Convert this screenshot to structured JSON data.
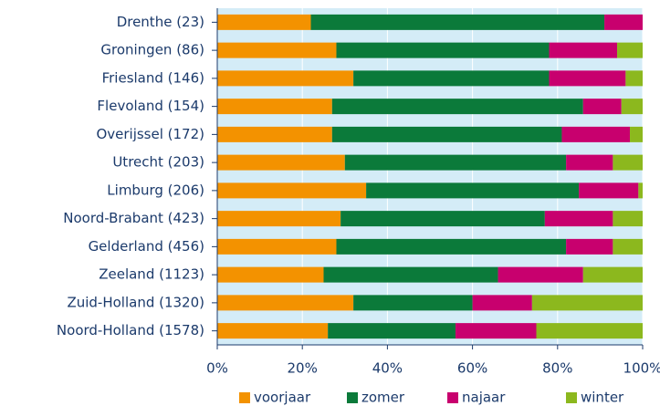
{
  "chart_data": {
    "type": "stacked-barh",
    "categories": [
      "Drenthe (23)",
      "Groningen (86)",
      "Friesland (146)",
      "Flevoland (154)",
      "Overijssel (172)",
      "Utrecht (203)",
      "Limburg (206)",
      "Noord-Brabant (423)",
      "Gelderland (456)",
      "Zeeland (1123)",
      "Zuid-Holland (1320)",
      "Noord-Holland (1578)"
    ],
    "series": [
      {
        "name": "voorjaar",
        "color": "#f39200",
        "values": [
          22,
          28,
          32,
          27,
          27,
          30,
          35,
          29,
          28,
          25,
          32,
          26
        ]
      },
      {
        "name": "zomer",
        "color": "#0b7a3a",
        "values": [
          69,
          50,
          46,
          59,
          54,
          52,
          50,
          48,
          54,
          41,
          28,
          30
        ]
      },
      {
        "name": "najaar",
        "color": "#c8006e",
        "values": [
          9,
          16,
          18,
          9,
          16,
          11,
          14,
          16,
          11,
          20,
          14,
          19
        ]
      },
      {
        "name": "winter",
        "color": "#8cb81e",
        "values": [
          0,
          6,
          4,
          5,
          3,
          7,
          1,
          7,
          7,
          14,
          26,
          25
        ]
      }
    ],
    "xlim": [
      0,
      100
    ],
    "xticks": [
      {
        "value": 0,
        "label": "0%"
      },
      {
        "value": 20,
        "label": "20%"
      },
      {
        "value": 40,
        "label": "40%"
      },
      {
        "value": 60,
        "label": "60%"
      },
      {
        "value": 80,
        "label": "80%"
      },
      {
        "value": 100,
        "label": "100%"
      }
    ],
    "grid": true,
    "legend": "bottom"
  }
}
